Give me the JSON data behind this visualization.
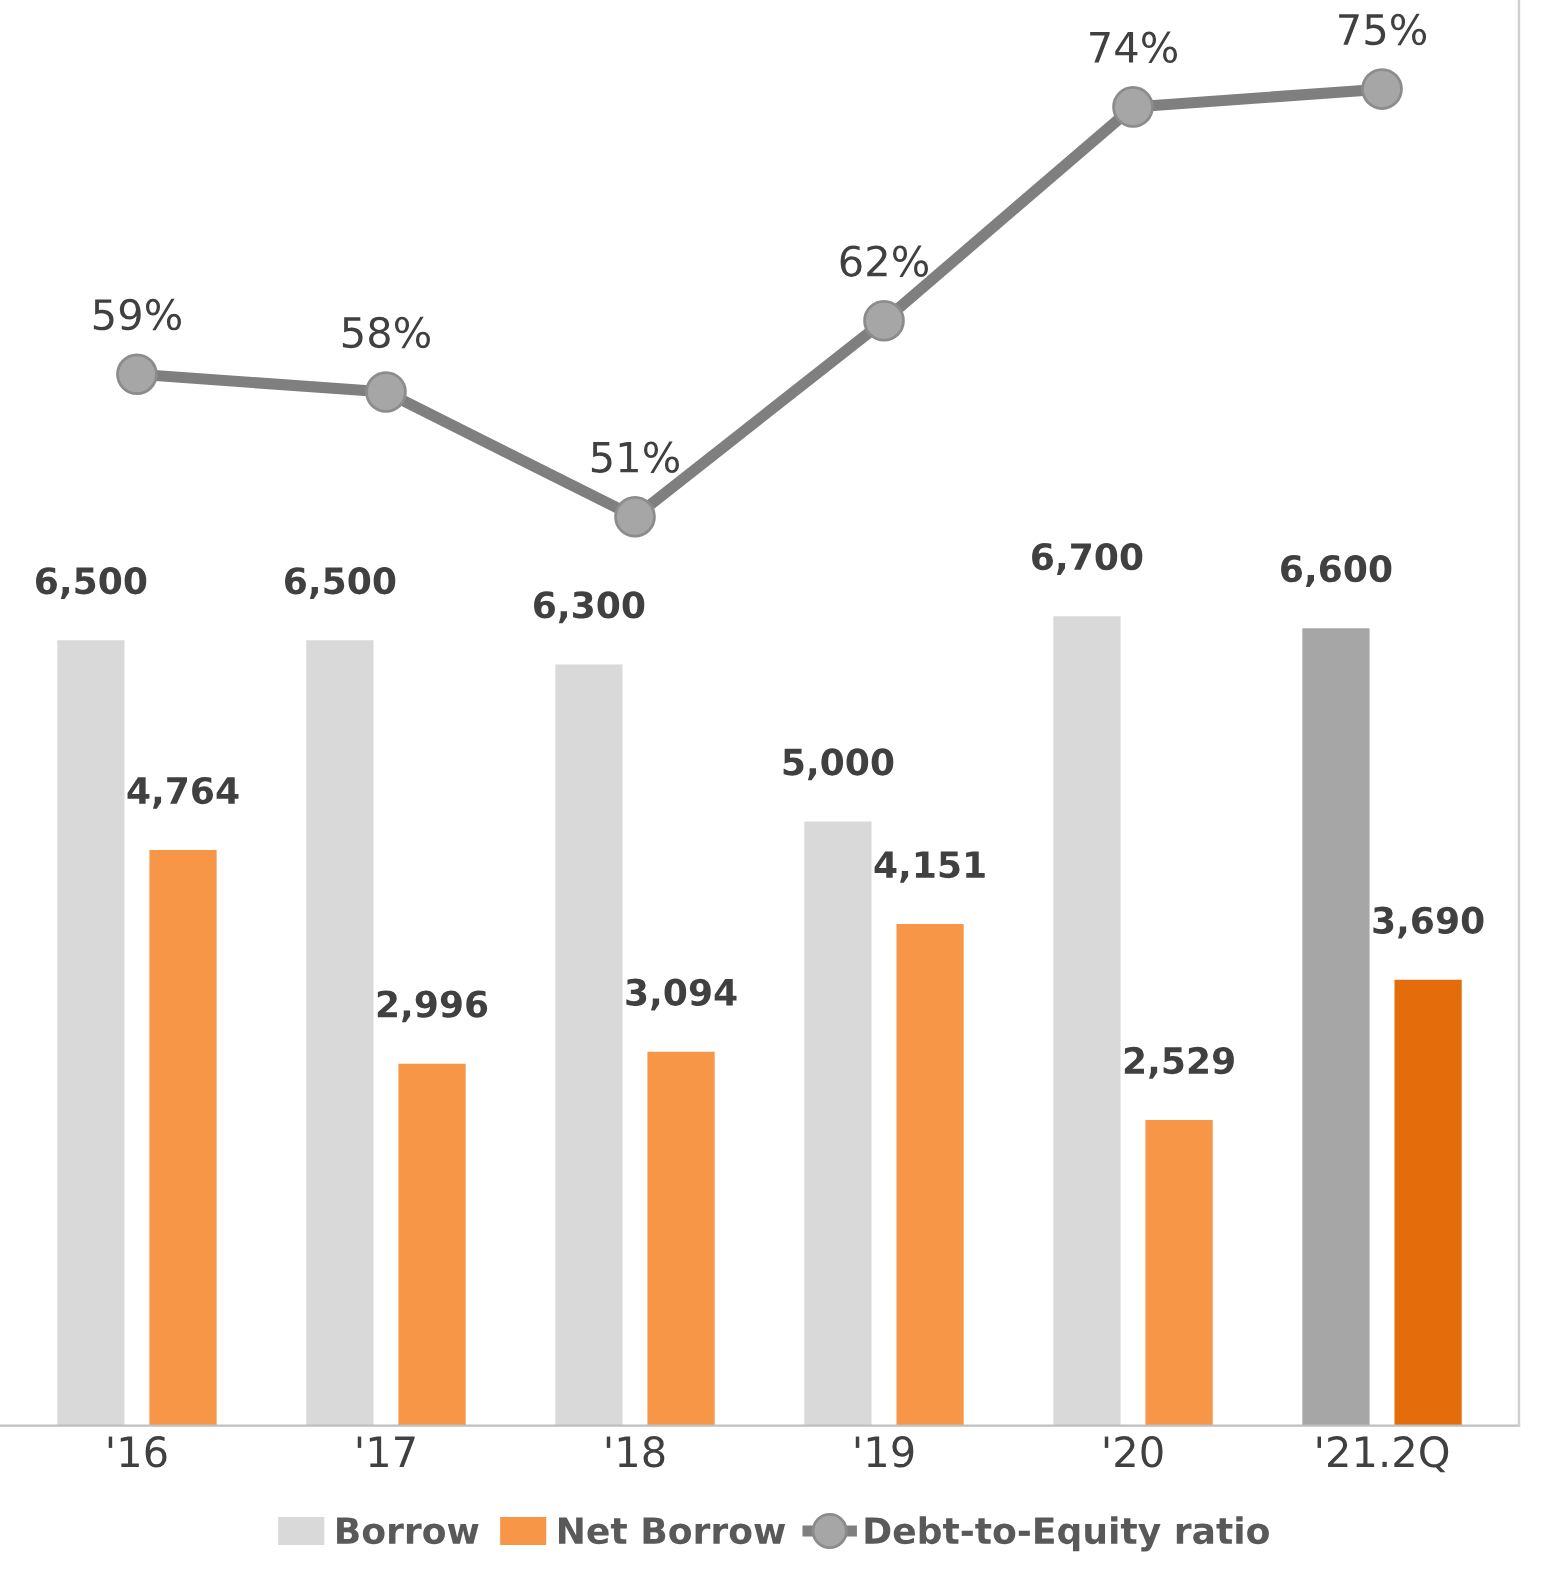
{
  "chart_data": {
    "type": "bar",
    "categories": [
      "'16",
      "'17",
      "'18",
      "'19",
      "'20",
      "'21.2Q"
    ],
    "series": [
      {
        "name": "Borrow",
        "color": "#d9d9d9",
        "colors": [
          "#d9d9d9",
          "#d9d9d9",
          "#d9d9d9",
          "#d9d9d9",
          "#d9d9d9",
          "#a6a6a6"
        ],
        "values": [
          6500,
          6500,
          6300,
          5000,
          6700,
          6600
        ],
        "value_labels": [
          "6,500",
          "6,500",
          "6,300",
          "5,000",
          "6,700",
          "6,600"
        ]
      },
      {
        "name": "Net Borrow",
        "color": "#f79646",
        "colors": [
          "#f79646",
          "#f79646",
          "#f79646",
          "#f79646",
          "#f79646",
          "#e46c0a"
        ],
        "values": [
          4764,
          2996,
          3094,
          4151,
          2529,
          3690
        ],
        "value_labels": [
          "4,764",
          "2,996",
          "3,094",
          "4,151",
          "2,529",
          "3,690"
        ]
      },
      {
        "name": "Debt-to-Equity ratio",
        "type": "line",
        "axis": "y2",
        "color": "#7f7f7f",
        "values": [
          59,
          58,
          51,
          62,
          74,
          75
        ],
        "value_labels": [
          "59%",
          "58%",
          "51%",
          "62%",
          "74%",
          "75%"
        ]
      }
    ],
    "ylim": [
      0,
      11800
    ],
    "y2lim": [
      0,
      80
    ],
    "marker": "circle",
    "line_style": "solid",
    "legend": "bottom",
    "grid": false,
    "tick_labels": "x"
  }
}
